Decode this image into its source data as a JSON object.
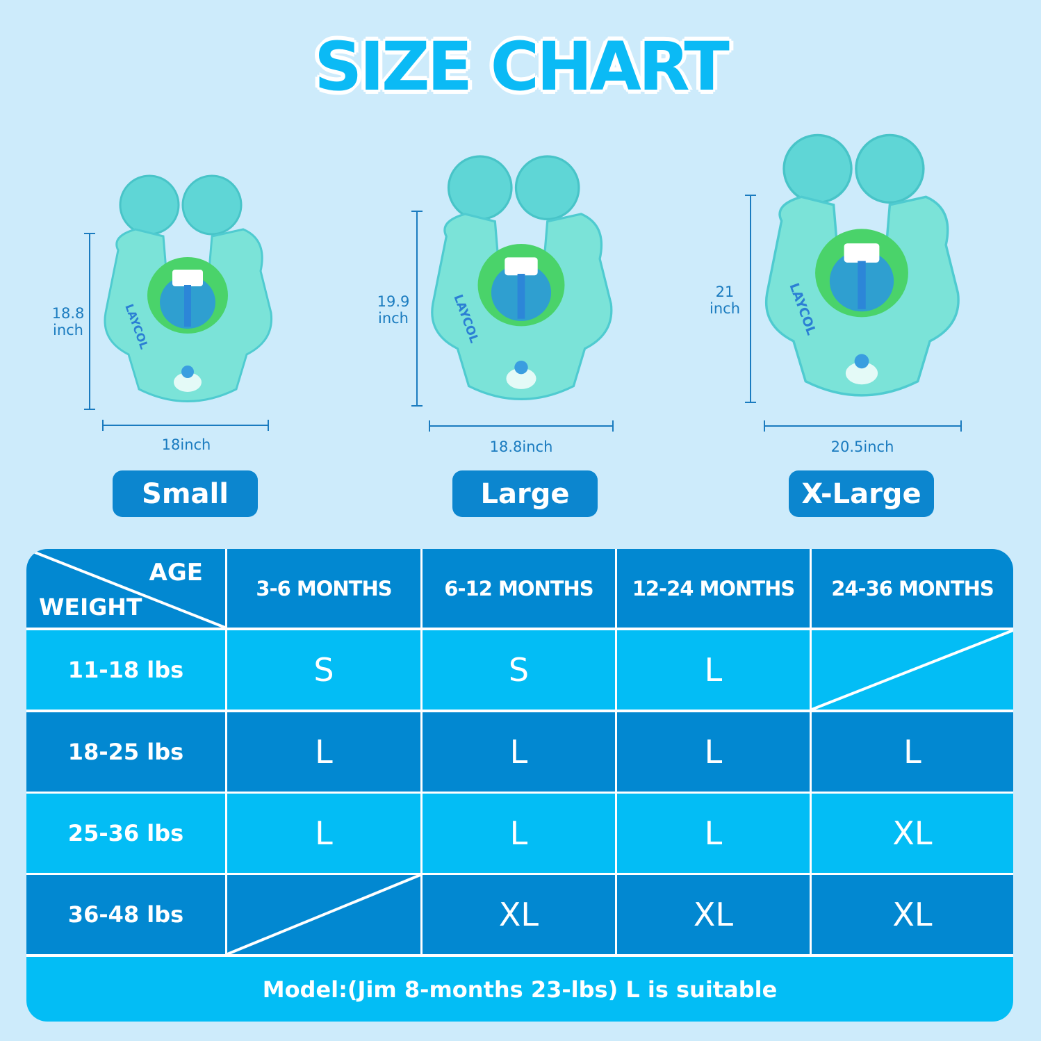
{
  "title": "SIZE CHART",
  "sizes": [
    {
      "name": "Small",
      "height": "18.8",
      "height_unit": "inch",
      "width": "18inch"
    },
    {
      "name": "Large",
      "height": "19.9",
      "height_unit": "inch",
      "width": "18.8inch"
    },
    {
      "name": "X-Large",
      "height": "21",
      "height_unit": "inch",
      "width": "20.5inch"
    }
  ],
  "product_brand": "LAYCOL",
  "table": {
    "corner_top": "AGE",
    "corner_bottom": "WEIGHT",
    "columns": [
      "3-6 MONTHS",
      "6-12 MONTHS",
      "12-24 MONTHS",
      "24-36 MONTHS"
    ],
    "rows": [
      {
        "label": "11-18 lbs",
        "values": [
          "S",
          "S",
          "L",
          null
        ]
      },
      {
        "label": "18-25 lbs",
        "values": [
          "L",
          "L",
          "L",
          "L"
        ]
      },
      {
        "label": "25-36 lbs",
        "values": [
          "L",
          "L",
          "L",
          "XL"
        ]
      },
      {
        "label": "36-48 lbs",
        "values": [
          null,
          "XL",
          "XL",
          "XL"
        ]
      }
    ],
    "footer": "Model:(Jim 8-months 23-lbs) L is suitable"
  },
  "colors": {
    "background": "#cdebfb",
    "title": "#0bbaf5",
    "dark_cell": "#0288d1",
    "light_cell": "#03bdf5",
    "dimension": "#1a7bbf",
    "button": "#0c86cf"
  }
}
